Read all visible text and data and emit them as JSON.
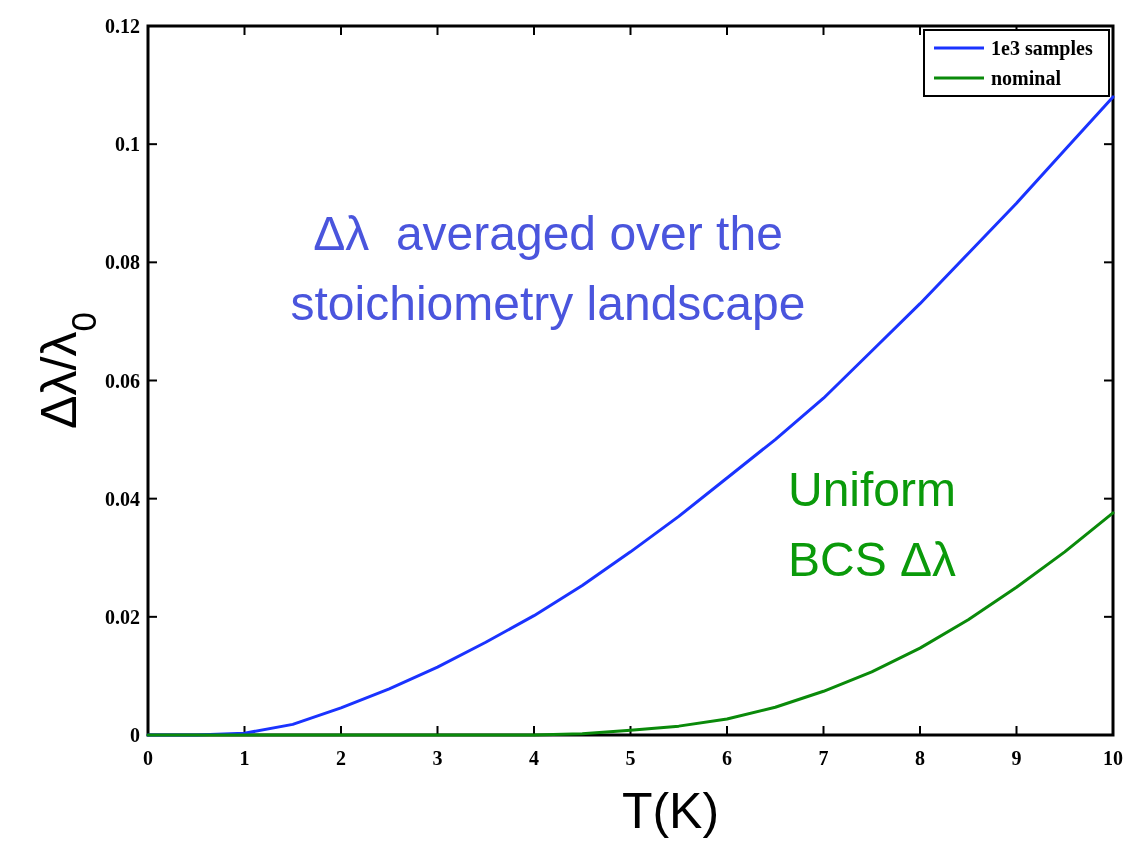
{
  "chart_data": {
    "type": "line",
    "xlabel": "T(K)",
    "ylabel": "Δλ/λ$_{0}$",
    "xlim": [
      0,
      10
    ],
    "ylim": [
      0,
      0.12
    ],
    "xticks": [
      0,
      1,
      2,
      3,
      4,
      5,
      6,
      7,
      8,
      9,
      10
    ],
    "yticks": [
      0,
      0.02,
      0.04,
      0.06,
      0.08,
      0.1,
      0.12
    ],
    "grid": false,
    "legend": "top right",
    "line_style": "solid",
    "marker": "none",
    "x": [
      0,
      0.5,
      1,
      1.5,
      2,
      2.5,
      3,
      3.5,
      4,
      4.5,
      5,
      5.5,
      6,
      6.5,
      7,
      7.5,
      8,
      8.5,
      9,
      9.5,
      10
    ],
    "series": [
      {
        "name": "1e3 samples",
        "color": "#1a33ff",
        "values": [
          0,
          0,
          0.0003,
          0.0018,
          0.0046,
          0.0078,
          0.0115,
          0.0157,
          0.0202,
          0.0253,
          0.031,
          0.037,
          0.0435,
          0.05,
          0.057,
          0.065,
          0.073,
          0.0815,
          0.09,
          0.099,
          0.108
        ]
      },
      {
        "name": "nominal",
        "color": "#0a8a0a",
        "values": [
          0,
          0,
          0,
          0,
          0,
          0,
          0,
          0,
          0,
          0.0002,
          0.0008,
          0.0015,
          0.0027,
          0.0047,
          0.0074,
          0.0107,
          0.0147,
          0.0195,
          0.025,
          0.031,
          0.0376
        ]
      }
    ],
    "annotations": [
      "Δλ  averaged over the\nstoichiometry landscape",
      "Uniform\nBCS Δλ"
    ]
  }
}
